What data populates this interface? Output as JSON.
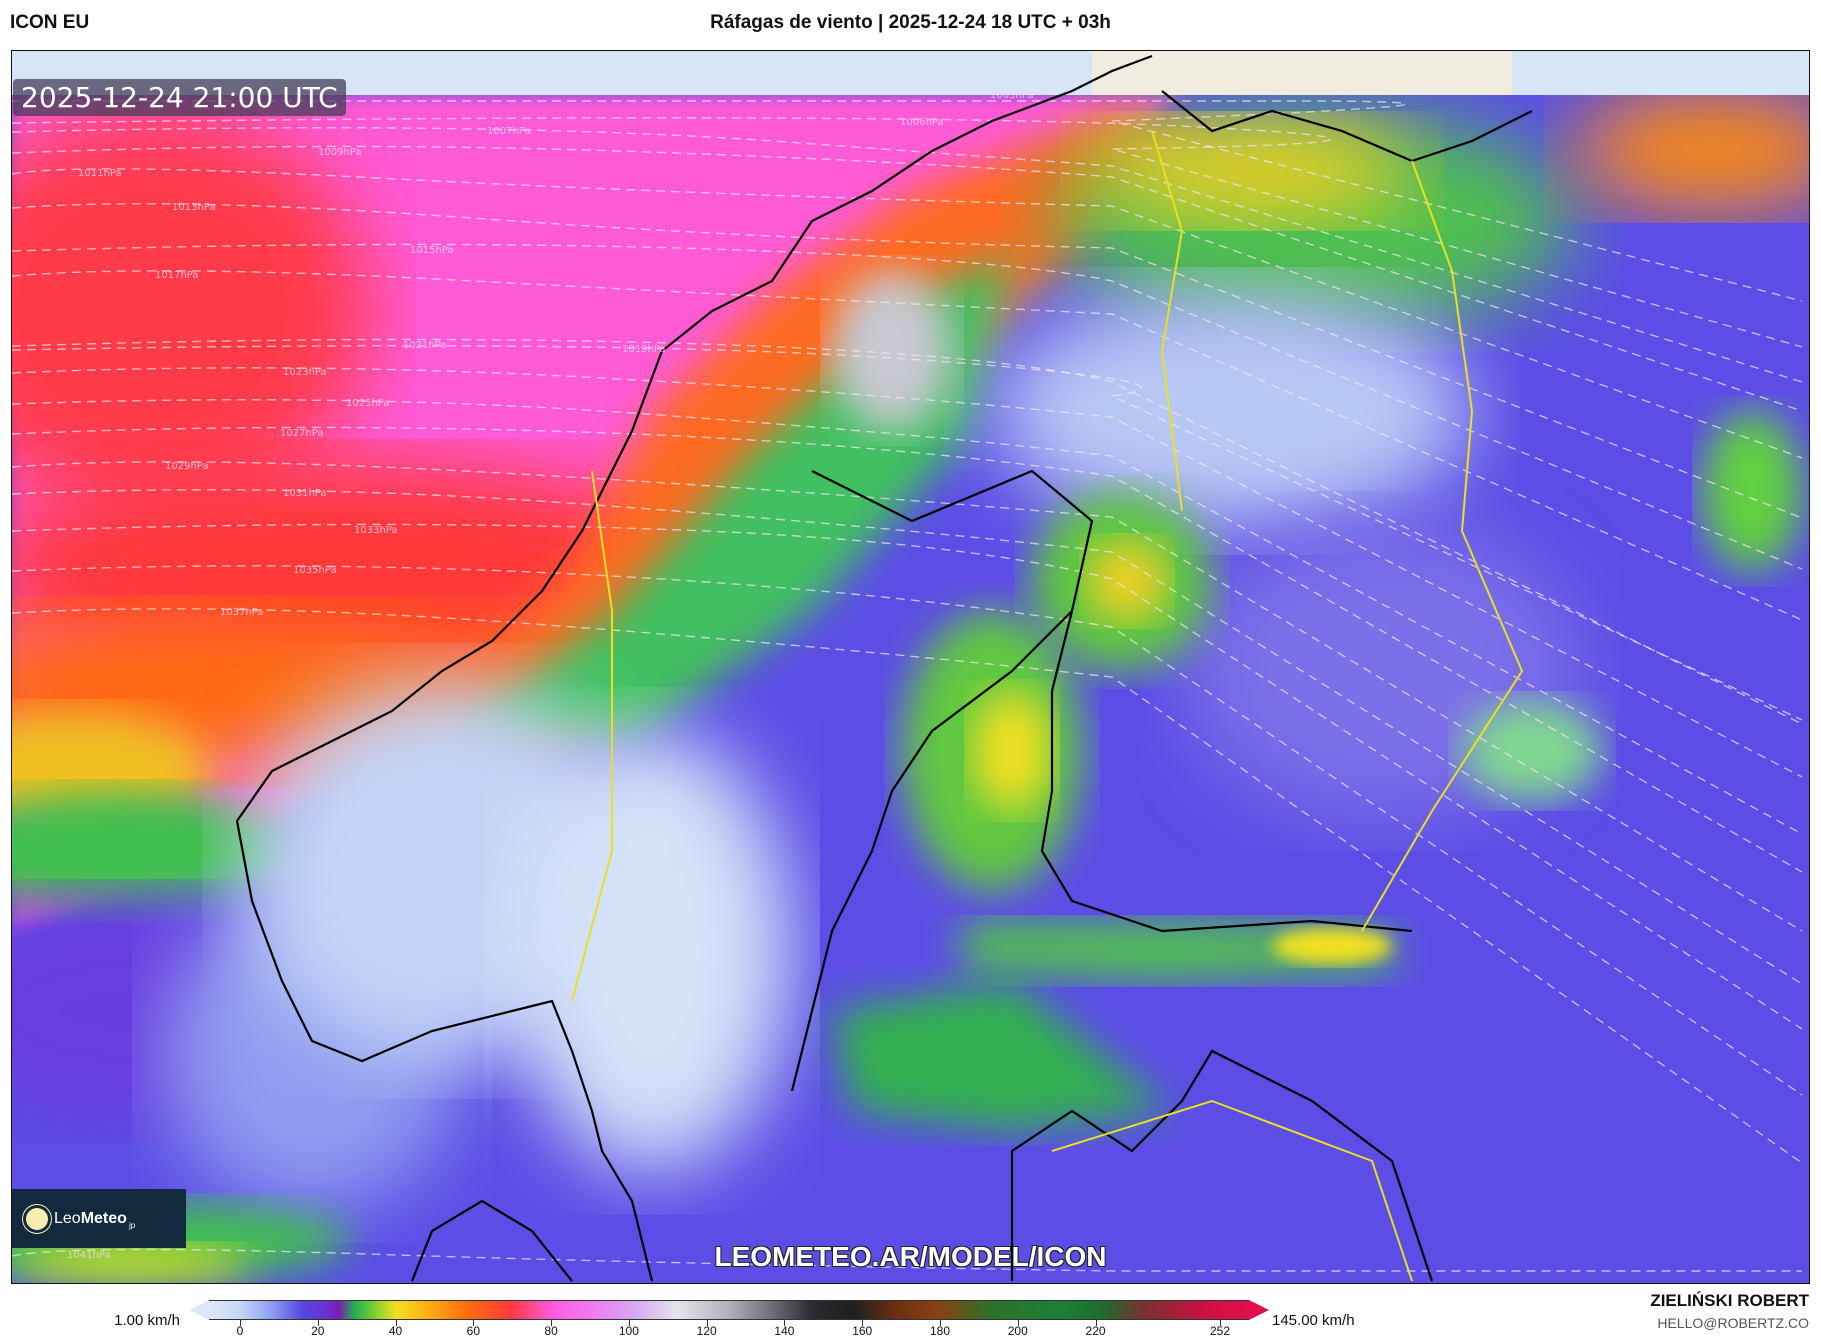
{
  "header": {
    "model": "ICON EU",
    "title": "Ráfagas de viento | 2025-12-24 18 UTC + 03h"
  },
  "map": {
    "valid_time": "2025-12-24 21:00 UTC",
    "watermark": "LEOMETEO.AR/MODEL/ICON",
    "logo": {
      "text_light": "Leo",
      "text_bold": "Meteo",
      "suffix": "jp"
    },
    "isobar_labels": [
      "1005hPa",
      "1006hPa",
      "1007hPa",
      "1009hPa",
      "1011hPa",
      "1013hPa",
      "1015hPa",
      "1017hPa",
      "1019hPa",
      "1021hPa",
      "1023hPa",
      "1025hPa",
      "1027hPa",
      "1029hPa",
      "1031hPa",
      "1033hPa",
      "1035hPa",
      "1037hPa",
      "1041hPa"
    ],
    "colors": {
      "ocean_top": "#d6e6f6",
      "land_ice": "#f0ece0",
      "coastline": "#000000",
      "border": "#e8e020"
    }
  },
  "colorbar": {
    "unit_min_label": "1.00 km/h",
    "unit_max_label": "145.00 km/h",
    "ticks": [
      "0",
      "20",
      "40",
      "60",
      "80",
      "100",
      "120",
      "140",
      "160",
      "180",
      "200",
      "220",
      "252"
    ]
  },
  "credits": {
    "author": "ZIELIŃSKI ROBERT",
    "email": "HELLO@ROBERTZ.CO"
  }
}
